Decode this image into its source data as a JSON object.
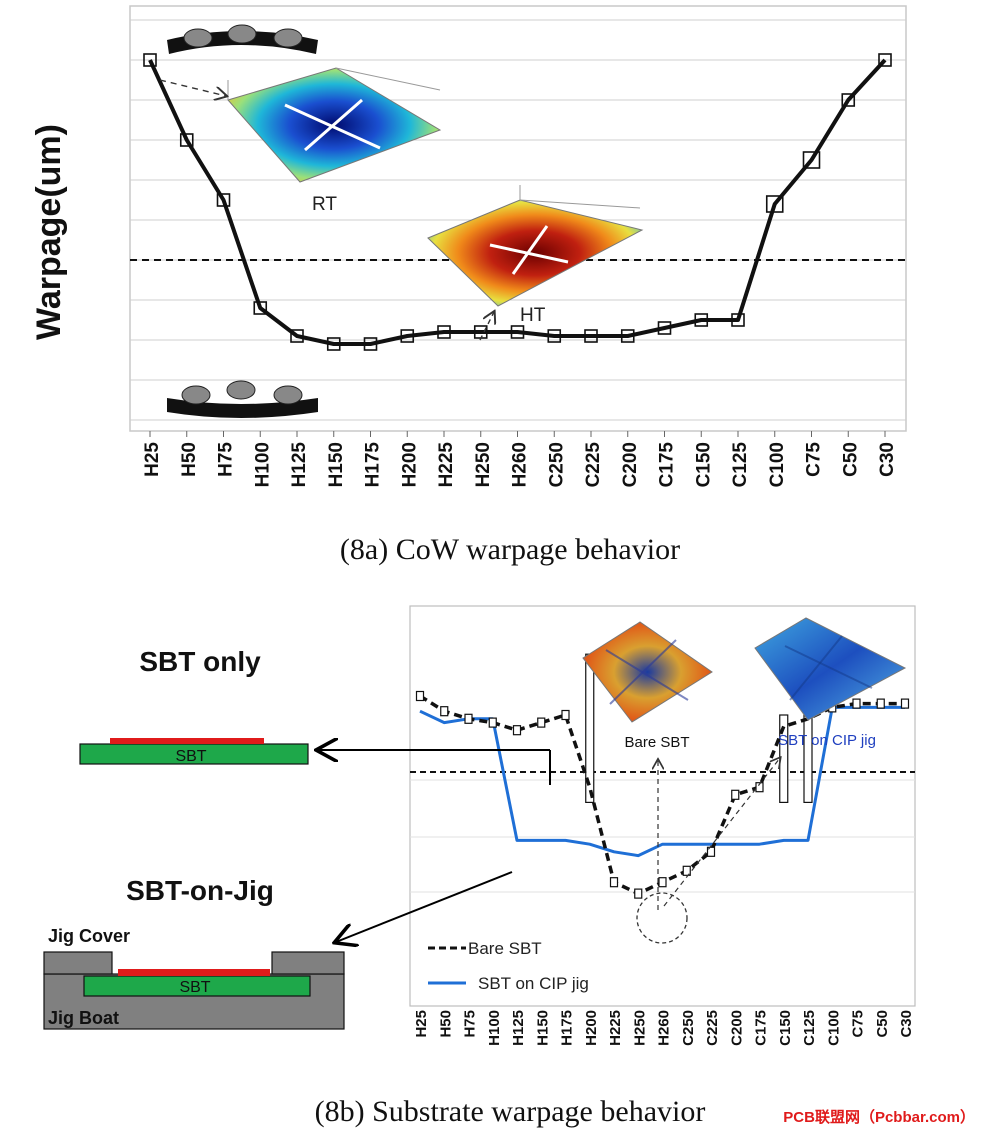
{
  "chart_data": [
    {
      "type": "line",
      "caption": "(8a) CoW warpage behavior",
      "ylabel": "Warpage(um)",
      "categories": [
        "H25",
        "H50",
        "H75",
        "H100",
        "H125",
        "H150",
        "H175",
        "H200",
        "H225",
        "H250",
        "H260",
        "C250",
        "C225",
        "C200",
        "C175",
        "C150",
        "C125",
        "C100",
        "C75",
        "C50",
        "C30"
      ],
      "series": [
        {
          "values": [
            90,
            70,
            55,
            28,
            21,
            19,
            19,
            21,
            22,
            22,
            22,
            21,
            21,
            21,
            23,
            25,
            25,
            54,
            65,
            80,
            90
          ]
        }
      ],
      "reference_line": 40,
      "ylim": [
        0,
        100
      ],
      "grid": true,
      "annotations": [
        "RT",
        "HT"
      ]
    },
    {
      "type": "line",
      "caption": "(8b) Substrate warpage behavior",
      "categories": [
        "H25",
        "H50",
        "H75",
        "H100",
        "H125",
        "H150",
        "H175",
        "H200",
        "H225",
        "H250",
        "H260",
        "C250",
        "C225",
        "C200",
        "C175",
        "C150",
        "C125",
        "C100",
        "C75",
        "C50",
        "C30"
      ],
      "series": [
        {
          "name": "Bare SBT",
          "style": "dashed",
          "color": "#111111",
          "values": [
            80,
            76,
            74,
            73,
            71,
            73,
            75,
            56,
            31,
            28,
            31,
            34,
            39,
            54,
            56,
            72,
            74,
            77,
            78,
            78,
            78
          ]
        },
        {
          "name": "SBT on CIP jig",
          "style": "solid",
          "color": "#1f6fd6",
          "values": [
            76,
            73,
            74,
            74,
            42,
            42,
            42,
            41,
            39,
            38,
            41,
            41,
            41,
            41,
            41,
            42,
            42,
            77,
            77,
            77,
            77
          ]
        }
      ],
      "reference_line": 60,
      "ylim": [
        0,
        100
      ],
      "legend": "bottom-left",
      "annotations": [
        "Bare SBT",
        "SBT on CIP jig"
      ]
    }
  ],
  "left_panel": {
    "sbt_only": "SBT only",
    "sbt_on_jig": "SBT-on-Jig",
    "sbt_label": "SBT",
    "jig_cover": "Jig Cover",
    "jig_boat": "Jig Boat"
  },
  "watermark": "PCB联盟网（Pcbbar.com）",
  "colors": {
    "blue_series": "#1f6fd6",
    "substrate": "#1ea84a",
    "chip": "#e01b1b",
    "jig": "#808080"
  }
}
